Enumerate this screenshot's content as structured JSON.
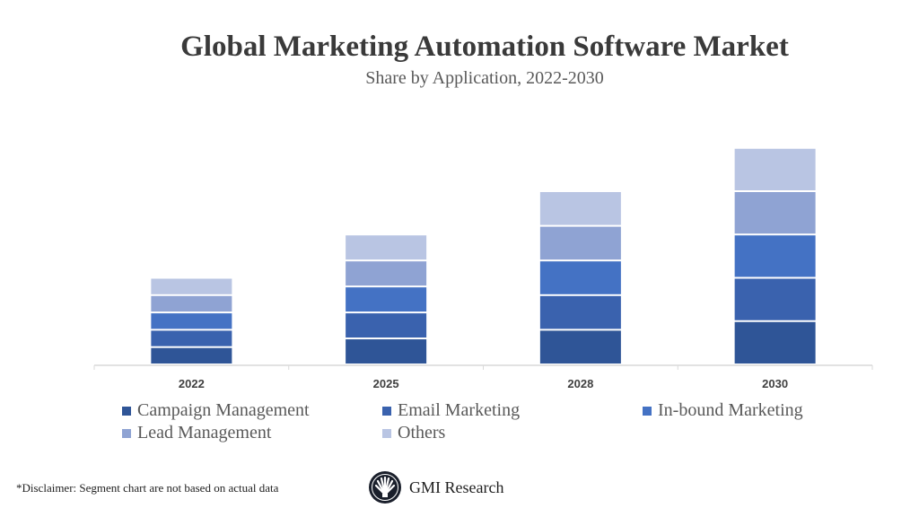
{
  "chart_data": {
    "type": "bar",
    "stacked": true,
    "title": "Global Marketing Automation Software Market",
    "subtitle": "Share by Application, 2022-2030",
    "categories": [
      "2022",
      "2025",
      "2028",
      "2030"
    ],
    "series": [
      {
        "name": "Campaign Management",
        "color": "#2F5597",
        "values": [
          1,
          1.5,
          2,
          2.5
        ]
      },
      {
        "name": "Email Marketing",
        "color": "#3A62AE",
        "values": [
          1,
          1.5,
          2,
          2.5
        ]
      },
      {
        "name": "In-bound Marketing",
        "color": "#4472C4",
        "values": [
          1,
          1.5,
          2,
          2.5
        ]
      },
      {
        "name": "Lead Management",
        "color": "#8FA3D3",
        "values": [
          1,
          1.5,
          2,
          2.5
        ]
      },
      {
        "name": "Others",
        "color": "#B9C5E3",
        "values": [
          1,
          1.5,
          2,
          2.5
        ]
      }
    ],
    "ylim": [
      0,
      14
    ],
    "grid": false,
    "y_axis_shown": false,
    "legend_placement": "bottom"
  },
  "footer": {
    "disclaimer": "*Disclaimer:  Segment chart are not based on actual data",
    "brand": "GMI Research"
  }
}
